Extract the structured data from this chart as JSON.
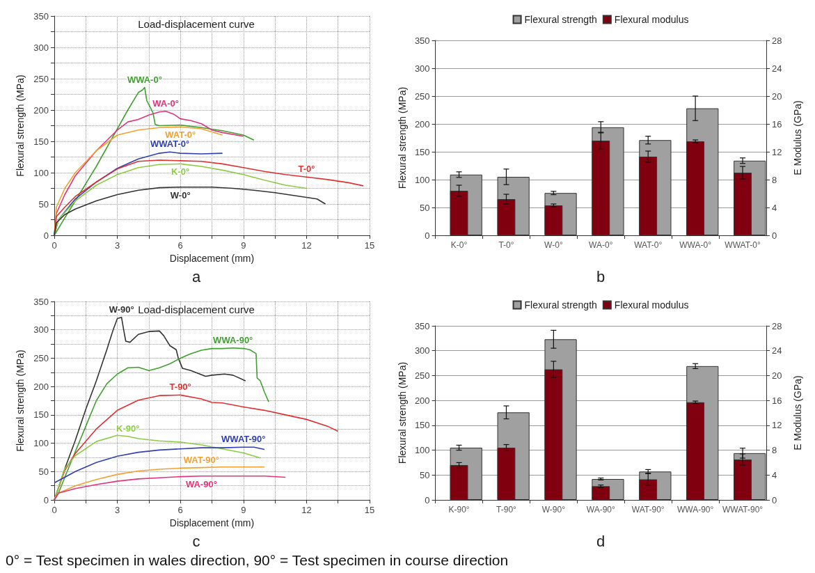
{
  "chart_data": [
    {
      "type": "line",
      "title": "Load-displacement curve",
      "subtitle": "a",
      "xlabel": "Displacement (mm)",
      "ylabel": "Flexural strength (MPa)",
      "xlim": [
        0,
        15
      ],
      "ylim": [
        0,
        350
      ],
      "xticks": [
        0,
        {
          "value": 1.5,
          "label": null
        },
        3,
        {
          "value": 4.5,
          "label": null
        },
        6,
        {
          "value": 7.5,
          "label": null
        },
        9,
        {
          "value": 10.5,
          "label": null
        },
        12,
        {
          "value": 13.5,
          "label": null
        },
        15
      ],
      "yticks": [
        0,
        {
          "value": 25,
          "label": null
        },
        50,
        {
          "value": 75,
          "label": null
        },
        100,
        {
          "value": 125,
          "label": null
        },
        150,
        {
          "value": 175,
          "label": null
        },
        200,
        {
          "value": 225,
          "label": null
        },
        250,
        {
          "value": 275,
          "label": null
        },
        300,
        {
          "value": 325,
          "label": null
        },
        350
      ],
      "grid": true,
      "series": [
        {
          "name": "WWA-0°",
          "color": "#40a030",
          "x": [
            0,
            0.5,
            1,
            2,
            3,
            3.5,
            4,
            4.2,
            4.3,
            4.4,
            4.6,
            4.7,
            4.8,
            5,
            6,
            7,
            8,
            9,
            9.5
          ],
          "values": [
            0,
            28,
            55,
            110,
            170,
            200,
            228,
            232,
            236,
            215,
            202,
            195,
            177,
            175,
            176,
            172,
            167,
            160,
            152
          ]
        },
        {
          "name": "WA-0°",
          "color": "#e0357a",
          "x": [
            0,
            0.1,
            0.5,
            1,
            2,
            3,
            3.5,
            4,
            4.5,
            5,
            5.3,
            5.7,
            6,
            6.5,
            7,
            7.5,
            8,
            9
          ],
          "values": [
            0,
            35,
            65,
            95,
            135,
            168,
            181,
            185,
            192,
            197,
            198,
            193,
            186,
            183,
            178,
            168,
            164,
            158
          ]
        },
        {
          "name": "WAT-0°",
          "color": "#f5a030",
          "x": [
            0,
            0.1,
            0.5,
            1,
            2,
            3,
            4,
            5,
            6,
            7,
            8
          ],
          "values": [
            0,
            45,
            75,
            100,
            135,
            160,
            168,
            172,
            173,
            170,
            160
          ]
        },
        {
          "name": "WWAT-0°",
          "color": "#3040b0",
          "x": [
            0,
            0.2,
            1,
            2,
            3,
            4,
            5,
            5.5,
            6,
            7,
            8
          ],
          "values": [
            0,
            25,
            58,
            85,
            107,
            122,
            131,
            133,
            131,
            130,
            131
          ]
        },
        {
          "name": "T-0°",
          "color": "#e03030",
          "x": [
            0,
            0.1,
            0.5,
            1,
            2,
            3,
            4,
            5,
            6,
            7,
            8,
            9,
            10,
            11,
            12,
            13,
            14,
            14.7
          ],
          "values": [
            0,
            30,
            45,
            62,
            85,
            106,
            118,
            120,
            119,
            118,
            114,
            108,
            102,
            97,
            93,
            89,
            84,
            79
          ]
        },
        {
          "name": "K-0°",
          "color": "#8ccc44",
          "x": [
            0,
            0.2,
            1,
            2,
            3,
            4,
            5,
            6,
            7,
            8,
            9,
            10,
            11,
            12
          ],
          "values": [
            0,
            25,
            55,
            80,
            97,
            108,
            113,
            114,
            110,
            104,
            97,
            88,
            80,
            75
          ]
        },
        {
          "name": "W-0°",
          "color": "#333333",
          "x": [
            0,
            0.1,
            0.5,
            1,
            2,
            3,
            4,
            5,
            6,
            7,
            7.5,
            8.5,
            9.5,
            10.5,
            11.5,
            12.5,
            12.9
          ],
          "values": [
            0,
            20,
            33,
            42,
            55,
            65,
            72,
            76,
            77,
            77,
            77,
            75,
            72,
            68,
            63,
            58,
            50
          ]
        }
      ]
    },
    {
      "type": "bar",
      "subtitle": "b",
      "ylabel": "Flexural strength (MPa)",
      "y2label": "E Modulus (GPa)",
      "legend": "top",
      "grid": "y",
      "categories": [
        "K-0°",
        "T-0°",
        "W-0°",
        "WA-0°",
        "WAT-0°",
        "WWA-0°",
        "WWAT-0°"
      ],
      "ylim": [
        0,
        350
      ],
      "yticks": [
        0,
        50,
        100,
        150,
        200,
        250,
        300,
        350
      ],
      "y2lim": [
        0,
        28
      ],
      "y2ticks": [
        0,
        4,
        8,
        12,
        16,
        20,
        24,
        28
      ],
      "series": [
        {
          "name": "Flexural strength",
          "color": "#a0a0a0",
          "values": [
            109,
            105,
            76,
            194,
            171,
            228,
            134
          ],
          "errors": [
            5,
            14,
            3,
            10,
            7,
            22,
            5
          ]
        },
        {
          "name": "Flexural modulus",
          "color": "#800010",
          "axis": "y2",
          "values": [
            6.4,
            5.2,
            4.3,
            13.6,
            11.3,
            13.5,
            9.0
          ],
          "errors": [
            0.8,
            0.7,
            0.2,
            1.2,
            0.8,
            0.2,
            0.9
          ]
        }
      ]
    },
    {
      "type": "line",
      "title": "Load-displacement curve",
      "subtitle": "c",
      "xlabel": "Displacement (mm)",
      "ylabel": "Flexural strength (MPa)",
      "xlim": [
        0,
        15
      ],
      "ylim": [
        0,
        350
      ],
      "xticks": [
        0,
        {
          "value": 1.5,
          "label": null
        },
        3,
        {
          "value": 4.5,
          "label": null
        },
        6,
        {
          "value": 7.5,
          "label": null
        },
        9,
        {
          "value": 10.5,
          "label": null
        },
        12,
        {
          "value": 13.5,
          "label": null
        },
        15
      ],
      "yticks": [
        0,
        {
          "value": 25,
          "label": null
        },
        50,
        {
          "value": 75,
          "label": null
        },
        100,
        {
          "value": 125,
          "label": null
        },
        150,
        {
          "value": 175,
          "label": null
        },
        200,
        {
          "value": 225,
          "label": null
        },
        250,
        {
          "value": 275,
          "label": null
        },
        300,
        {
          "value": 325,
          "label": null
        },
        350
      ],
      "grid": true,
      "series": [
        {
          "name": "W-90°",
          "color": "#333333",
          "x": [
            0,
            0.5,
            1,
            1.5,
            2,
            2.5,
            2.8,
            3,
            3.2,
            3.3,
            3.4,
            3.6,
            4,
            4.5,
            5,
            5.2,
            5.5,
            5.8,
            5.9,
            6.1,
            6.5,
            7.2,
            7.5,
            8.1,
            8.5,
            9.1
          ],
          "values": [
            0,
            55,
            105,
            160,
            210,
            265,
            300,
            320,
            322,
            300,
            280,
            278,
            292,
            297,
            298,
            290,
            272,
            265,
            250,
            232,
            228,
            218,
            220,
            222,
            220,
            210
          ]
        },
        {
          "name": "WWA-90°",
          "color": "#40a030",
          "x": [
            0,
            0.2,
            0.5,
            1,
            1.5,
            2,
            2.5,
            3,
            3.5,
            4,
            4.5,
            5,
            5.5,
            6,
            6.5,
            7,
            7.5,
            8,
            8.5,
            9,
            9.3,
            9.6,
            9.65,
            9.8,
            10,
            10.2
          ],
          "values": [
            0,
            12,
            40,
            85,
            130,
            175,
            205,
            222,
            233,
            234,
            228,
            233,
            240,
            250,
            258,
            264,
            267,
            267,
            268,
            267,
            265,
            258,
            215,
            210,
            190,
            173
          ]
        },
        {
          "name": "T-90°",
          "color": "#e03030",
          "x": [
            0,
            0.5,
            1,
            2,
            3,
            4,
            5,
            6,
            7,
            7.5,
            8,
            9,
            10,
            11,
            12,
            13,
            13.5
          ],
          "values": [
            0,
            52,
            82,
            125,
            158,
            176,
            184,
            185,
            178,
            172,
            171,
            164,
            158,
            150,
            142,
            130,
            121
          ]
        },
        {
          "name": "K-90°",
          "color": "#8ccc44",
          "x": [
            0,
            0.5,
            1,
            2,
            3,
            3.5,
            4,
            5,
            6,
            7,
            8,
            9,
            9.8
          ],
          "values": [
            0,
            55,
            78,
            103,
            114,
            112,
            108,
            104,
            102,
            97,
            90,
            83,
            74
          ]
        },
        {
          "name": "WWAT-90°",
          "color": "#3040b0",
          "x": [
            0,
            0.5,
            1,
            2,
            3,
            4,
            5,
            6,
            7,
            8,
            9,
            9.5,
            10
          ],
          "values": [
            30,
            40,
            50,
            66,
            77,
            84,
            88,
            90,
            92,
            92,
            93,
            93,
            89
          ]
        },
        {
          "name": "WAT-90°",
          "color": "#f5a030",
          "x": [
            0,
            0.2,
            1,
            2,
            3,
            4,
            5,
            6,
            7,
            8,
            9,
            10
          ],
          "values": [
            0,
            12,
            25,
            36,
            45,
            51,
            54,
            56,
            57,
            58,
            58,
            58
          ]
        },
        {
          "name": "WA-90°",
          "color": "#e0357a",
          "x": [
            0,
            0.2,
            1,
            2,
            3,
            4,
            5,
            6,
            7,
            8,
            9,
            10,
            11
          ],
          "values": [
            0,
            12,
            20,
            27,
            33,
            37,
            39,
            41,
            42,
            42,
            42,
            42,
            40
          ]
        }
      ]
    },
    {
      "type": "bar",
      "subtitle": "d",
      "ylabel": "Flexural strength (MPa)",
      "y2label": "E Modulus (GPa)",
      "legend": "top",
      "grid": "y",
      "categories": [
        "K-90°",
        "T-90°",
        "W-90°",
        "WA-90°",
        "WAT-90°",
        "WWA-90°",
        "WWAT-90°"
      ],
      "ylim": [
        0,
        350
      ],
      "yticks": [
        0,
        50,
        100,
        150,
        200,
        250,
        300,
        350
      ],
      "y2lim": [
        0,
        28
      ],
      "y2ticks": [
        0,
        4,
        8,
        12,
        16,
        20,
        24,
        28
      ],
      "series": [
        {
          "name": "Flexural strength",
          "color": "#a0a0a0",
          "values": [
            105,
            176,
            323,
            42,
            57,
            269,
            94
          ],
          "errors": [
            5,
            13,
            18,
            2,
            4,
            5,
            10
          ]
        },
        {
          "name": "Flexural modulus",
          "color": "#800010",
          "axis": "y2",
          "values": [
            5.6,
            8.4,
            21.0,
            2.2,
            3.3,
            15.7,
            6.5
          ],
          "errors": [
            0.4,
            0.5,
            1.3,
            0.2,
            1.0,
            0.2,
            0.9
          ]
        }
      ]
    },
    {
      "type": "other",
      "annotations": [
        "0° = Test specimen in wales direction, 90° = Test specimen in course direction"
      ]
    }
  ]
}
